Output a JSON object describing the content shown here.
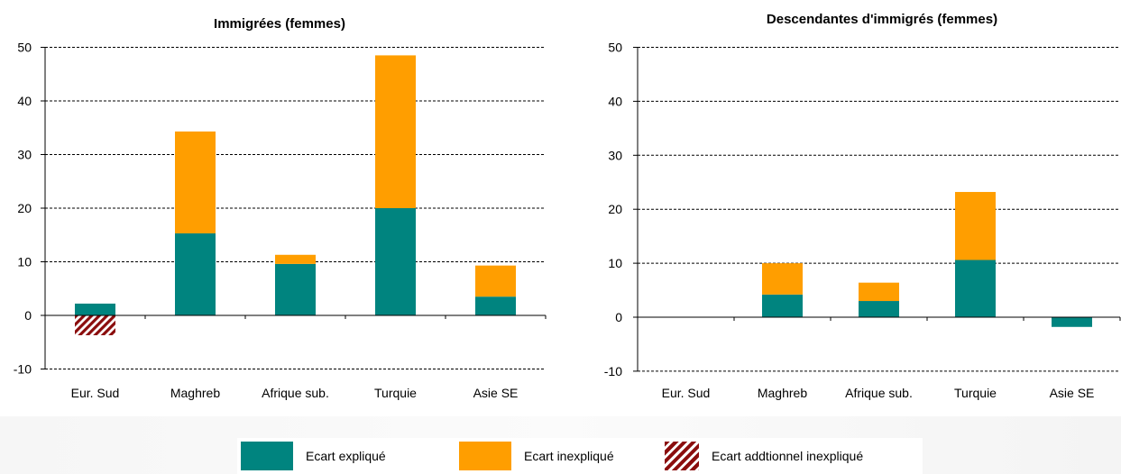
{
  "legend": {
    "items": [
      {
        "label": "Ecart expliqué",
        "color": "#00847f",
        "pattern": "solid"
      },
      {
        "label": "Ecart inexpliqué",
        "color": "#ff9e00",
        "pattern": "solid"
      },
      {
        "label": "Ecart addtionnel inexpliqué",
        "color": "#8b0d0d",
        "pattern": "hatched"
      }
    ]
  },
  "chart_data": [
    {
      "type": "bar",
      "stacked": true,
      "title": "Immigrées (femmes)",
      "xlabel": "",
      "ylabel": "",
      "categories": [
        "Eur. Sud",
        "Maghreb",
        "Afrique sub.",
        "Turquie",
        "Asie SE"
      ],
      "ylim": [
        -10,
        50
      ],
      "yticks": [
        -10,
        0,
        10,
        20,
        30,
        40,
        50
      ],
      "grid": "dashed horizontal",
      "series": [
        {
          "name": "Ecart expliqué",
          "color": "#00847f",
          "values": [
            2.2,
            15.3,
            9.6,
            20.0,
            3.5
          ]
        },
        {
          "name": "Ecart inexpliqué",
          "color": "#ff9e00",
          "values": [
            0,
            19.0,
            1.7,
            28.5,
            5.8
          ]
        },
        {
          "name": "Ecart addtionnel inexpliqué",
          "color": "#8b0d0d",
          "pattern": "hatched",
          "values": [
            -3.7,
            0,
            0,
            0,
            0
          ]
        }
      ]
    },
    {
      "type": "bar",
      "stacked": true,
      "title": "Descendantes d'immigrés (femmes)",
      "xlabel": "",
      "ylabel": "",
      "categories": [
        "Eur. Sud",
        "Maghreb",
        "Afrique sub.",
        "Turquie",
        "Asie SE"
      ],
      "ylim": [
        -10,
        50
      ],
      "yticks": [
        -10,
        0,
        10,
        20,
        30,
        40,
        50
      ],
      "grid": "dashed horizontal",
      "series": [
        {
          "name": "Ecart expliqué",
          "color": "#00847f",
          "values": [
            0,
            4.2,
            3.0,
            10.6,
            -1.8
          ]
        },
        {
          "name": "Ecart inexpliqué",
          "color": "#ff9e00",
          "values": [
            0,
            5.8,
            3.4,
            12.6,
            0
          ]
        },
        {
          "name": "Ecart addtionnel inexpliqué",
          "color": "#8b0d0d",
          "pattern": "hatched",
          "values": [
            0,
            0,
            0,
            0,
            0
          ]
        }
      ]
    }
  ]
}
